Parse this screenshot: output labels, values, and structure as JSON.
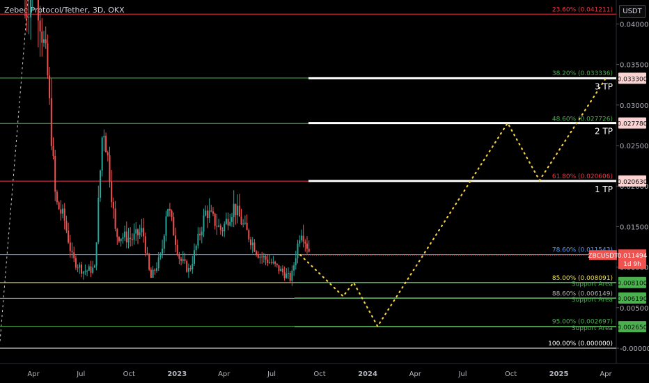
{
  "header": {
    "title": "Zebec Protocol/Tether, 3D, OKX",
    "currency_button": "USDT"
  },
  "chart_data": {
    "type": "line",
    "symbol": "ZBCUSDT",
    "y_ticks": [
      "0.040000",
      "0.035000",
      "0.030000",
      "0.025000",
      "0.020000",
      "0.015000",
      "0.010000",
      "0.005000",
      "-0.000000"
    ],
    "y_tick_values": [
      0.04,
      0.035,
      0.03,
      0.025,
      0.02,
      0.015,
      0.01,
      0.005,
      0
    ],
    "x_ticks": [
      "Apr",
      "Jul",
      "Oct",
      "2023",
      "Apr",
      "Jul",
      "Oct",
      "2024",
      "Apr",
      "Jul",
      "Oct",
      "2025",
      "Apr"
    ],
    "x_tick_dates": [
      "2022-04-01",
      "2022-07-01",
      "2022-10-01",
      "2023-01-01",
      "2023-04-01",
      "2023-07-01",
      "2023-10-01",
      "2024-01-01",
      "2024-04-01",
      "2024-07-01",
      "2024-10-01",
      "2025-01-01",
      "2025-04-01"
    ],
    "fib_levels": [
      {
        "label": "23.60% (0.041211)",
        "value": 0.041211,
        "color": "#f23645"
      },
      {
        "label": "38.20% (0.033336)",
        "value": 0.033336,
        "color": "#4caf50"
      },
      {
        "label": "48.60% (0.027726)",
        "value": 0.027726,
        "color": "#4caf50"
      },
      {
        "label": "61.80% (0.020606)",
        "value": 0.020606,
        "color": "#f23645"
      },
      {
        "label": "78.60% (0.011543)",
        "value": 0.011543,
        "color": "#5b9cf6"
      },
      {
        "label": "85.00% (0.008091)",
        "value": 0.008091,
        "color": "#f0e050"
      },
      {
        "label": "88.60% (0.006149)",
        "value": 0.006149,
        "color": "#b0b0b0"
      },
      {
        "label": "95.00% (0.002697)",
        "value": 0.002697,
        "color": "#4caf50"
      },
      {
        "label": "100.00% (0.000000)",
        "value": 0.0,
        "color": "#ffffff"
      }
    ],
    "targets": [
      {
        "label": "3 TP",
        "price": "0.033300",
        "value": 0.0333
      },
      {
        "label": "2 TP",
        "price": "0.027780",
        "value": 0.02778
      },
      {
        "label": "1 TP",
        "price": "0.020630",
        "value": 0.02063
      }
    ],
    "supports": [
      {
        "label": "Support Area",
        "price": "0.008100",
        "value": 0.0081
      },
      {
        "label": "Support Area",
        "price": "0.006190",
        "value": 0.00619
      },
      {
        "label": "Support Area",
        "price": "0.002650",
        "value": 0.00265
      }
    ],
    "current_price": {
      "label": "ZBCUSDT",
      "price": "0.011494",
      "value": 0.011494,
      "countdown": "1d 9h"
    },
    "projection_path": [
      {
        "date": "2023-08-25",
        "value": 0.0115
      },
      {
        "date": "2023-11-15",
        "value": 0.0064
      },
      {
        "date": "2023-12-05",
        "value": 0.0081
      },
      {
        "date": "2024-01-20",
        "value": 0.0027
      },
      {
        "date": "2024-09-25",
        "value": 0.02778
      },
      {
        "date": "2024-11-25",
        "value": 0.0207
      },
      {
        "date": "2025-04-01",
        "value": 0.0333
      }
    ],
    "colors": {
      "up": "#26a69a",
      "down": "#ef5350",
      "projection": "#f5d142",
      "background": "#000000"
    }
  }
}
